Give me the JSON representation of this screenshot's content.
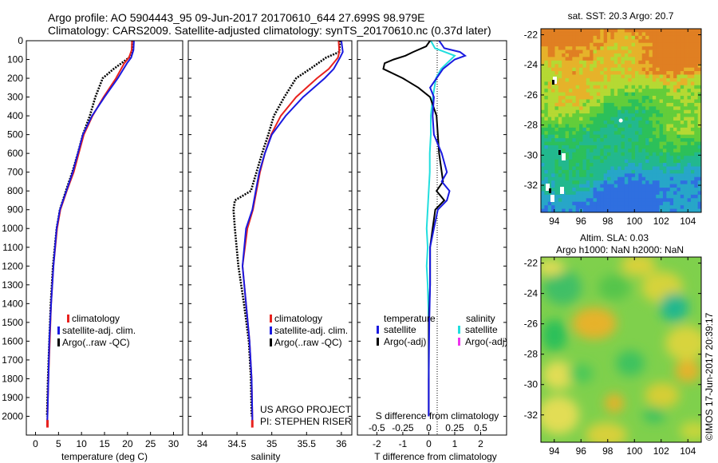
{
  "header": {
    "line1": "Argo profile: AO 5904443_95 09-Jun-2017 20170610_644 27.699S 98.979E",
    "line2": "Climatology: CARS2009. Satellite-adjusted climatology: synTS_20170610.nc (0.37d later)"
  },
  "colors": {
    "climatology": "#e8221e",
    "satellite": "#1a1ae0",
    "argo": "#000000",
    "sal_satellite": "#22dede",
    "sal_argo": "#ee33ee"
  },
  "chart_data": [
    {
      "id": "temperature",
      "type": "line",
      "xlabel": "temperature (deg C)",
      "ylabel": "",
      "xlim": [
        -2,
        32
      ],
      "ylim": [
        2100,
        0
      ],
      "xticks": [
        0,
        5,
        10,
        15,
        20,
        25,
        30
      ],
      "yticks": [
        0,
        100,
        200,
        300,
        400,
        500,
        600,
        700,
        800,
        900,
        1000,
        1100,
        1200,
        1300,
        1400,
        1500,
        1600,
        1700,
        1800,
        1900,
        2000
      ],
      "legend": [
        "climatology",
        "satellite-adj. clim.",
        "Argo(..raw -QC)"
      ],
      "series": [
        {
          "name": "climatology",
          "depth": [
            0,
            50,
            90,
            120,
            200,
            300,
            400,
            500,
            600,
            700,
            800,
            900,
            1000,
            1200,
            1400,
            1600,
            1800,
            2000,
            2050
          ],
          "values": [
            21.0,
            20.9,
            20.3,
            19.3,
            17.5,
            14.8,
            12.4,
            10.5,
            9.4,
            8.3,
            6.8,
            5.4,
            4.7,
            3.9,
            3.4,
            3.1,
            2.8,
            2.6,
            2.5
          ]
        },
        {
          "name": "satellite-adj. clim.",
          "depth": [
            0,
            50,
            90,
            120,
            200,
            300,
            400,
            500,
            600,
            700,
            800,
            900,
            1000,
            1200,
            1400,
            1600,
            1800,
            2000,
            2050
          ],
          "values": [
            21.4,
            21.3,
            20.8,
            19.9,
            17.9,
            15.0,
            12.3,
            10.3,
            9.2,
            8.1,
            6.7,
            5.3,
            4.6,
            3.9,
            3.4,
            3.0,
            2.8,
            2.6,
            2.5
          ]
        },
        {
          "name": "Argo(..raw -QC)",
          "depth": [
            0,
            50,
            80,
            100,
            150,
            200,
            250,
            300,
            400,
            500,
            600,
            700,
            800,
            900,
            1000,
            1200,
            1400,
            1600,
            1800,
            2000
          ],
          "values": [
            21.0,
            21.0,
            20.8,
            19.8,
            17.0,
            14.6,
            13.8,
            13.0,
            11.8,
            10.3,
            9.2,
            8.0,
            6.6,
            5.3,
            4.6,
            3.8,
            3.3,
            3.0,
            2.7,
            2.5
          ]
        }
      ]
    },
    {
      "id": "salinity",
      "type": "line",
      "xlabel": "salinity",
      "ylabel": "",
      "xlim": [
        33.8,
        36.15
      ],
      "ylim": [
        2100,
        0
      ],
      "xticks": [
        34,
        34.5,
        35,
        35.5,
        36
      ],
      "legend": [
        "climatology",
        "satellite-adj. clim.",
        "Argo(..raw -QC)"
      ],
      "annotation": [
        "US ARGO PROJECT",
        "PI: STEPHEN RISER"
      ],
      "series": [
        {
          "name": "climatology",
          "depth": [
            0,
            60,
            90,
            150,
            200,
            300,
            400,
            500,
            600,
            700,
            800,
            900,
            1000,
            1200,
            1400,
            1600,
            1800,
            2000,
            2050
          ],
          "values": [
            35.96,
            35.97,
            35.95,
            35.82,
            35.65,
            35.35,
            35.13,
            34.99,
            34.9,
            34.83,
            34.78,
            34.73,
            34.65,
            34.58,
            34.63,
            34.68,
            34.71,
            34.72,
            34.72
          ]
        },
        {
          "name": "satellite-adj. clim.",
          "depth": [
            0,
            60,
            90,
            150,
            200,
            300,
            400,
            500,
            600,
            700,
            800,
            900,
            1000,
            1200,
            1400,
            1600,
            1800,
            2000,
            2050
          ],
          "values": [
            36.0,
            36.02,
            35.98,
            35.89,
            35.76,
            35.45,
            35.2,
            35.0,
            34.9,
            34.82,
            34.77,
            34.72,
            34.63,
            34.58,
            34.63,
            34.68,
            34.71,
            34.72,
            34.72
          ]
        },
        {
          "name": "Argo(..raw -QC)",
          "depth": [
            0,
            60,
            90,
            150,
            200,
            300,
            400,
            500,
            600,
            700,
            800,
            850,
            900,
            1000,
            1200,
            1400,
            1600,
            1800,
            2000
          ],
          "values": [
            35.98,
            35.97,
            35.78,
            35.55,
            35.35,
            35.18,
            35.03,
            34.95,
            34.86,
            34.78,
            34.7,
            34.47,
            34.45,
            34.47,
            34.52,
            34.6,
            34.67,
            34.7,
            34.71
          ]
        }
      ]
    },
    {
      "id": "difference",
      "type": "line",
      "xlabel": "T difference from climatology",
      "top_label": "S difference from climatology",
      "xlim": [
        -2.75,
        3.0
      ],
      "ylim": [
        2100,
        0
      ],
      "xticks": [
        -2,
        -1,
        0,
        1,
        2
      ],
      "sticks": [
        -0.5,
        -0.25,
        0,
        0.25,
        0.5
      ],
      "stick_labels": [
        "-0.5",
        "-0.25",
        "0",
        "0.25",
        "0.5"
      ],
      "legend": {
        "temperature_title": "temperature",
        "salinity_title": "salinity",
        "t_satellite": "satellite",
        "t_argo": "Argo(-adj)",
        "s_satellite": "satellite",
        "s_argo": "Argo(-adj)"
      },
      "series": [
        {
          "name": "temperature satellite",
          "depth": [
            0,
            20,
            40,
            60,
            80,
            100,
            150,
            200,
            250,
            300,
            400,
            500,
            600,
            700,
            750,
            800,
            850,
            900,
            1000,
            1100,
            1200,
            1300,
            1500,
            1800,
            2000
          ],
          "values": [
            0.4,
            0.5,
            0.6,
            1.2,
            1.4,
            1.0,
            0.55,
            0.3,
            0.05,
            0.2,
            0.15,
            0.2,
            0.5,
            0.7,
            0.5,
            0.8,
            0.7,
            0.35,
            0.2,
            0.05,
            0.05,
            0.05,
            0.02,
            0.0,
            0.0
          ]
        },
        {
          "name": "temperature Argo(-adj)",
          "depth": [
            0,
            30,
            60,
            80,
            100,
            120,
            150,
            200,
            250,
            300,
            400,
            500,
            600,
            700,
            750,
            800,
            850,
            900,
            1000,
            1100,
            1200,
            1300,
            1500,
            1800,
            2000
          ],
          "values": [
            0.05,
            -0.1,
            -0.6,
            -0.9,
            -1.35,
            -1.7,
            -1.75,
            -1.0,
            -0.4,
            0.05,
            0.3,
            0.35,
            0.4,
            0.5,
            0.55,
            0.3,
            0.6,
            0.25,
            0.15,
            0.05,
            0.05,
            0.05,
            0.0,
            0.0,
            0.0
          ]
        },
        {
          "name": "salinity satellite",
          "depth": [
            0,
            40,
            80,
            150,
            200,
            300,
            400,
            500,
            600,
            700,
            800,
            900,
            1000,
            1100,
            1200,
            1300,
            1500,
            1800,
            2000
          ],
          "values": [
            0.02,
            0.06,
            0.25,
            0.12,
            0.07,
            0.04,
            0.02,
            0.02,
            0.01,
            0.01,
            0.0,
            -0.01,
            -0.02,
            -0.01,
            -0.02,
            -0.01,
            0.0,
            0.0,
            0.0
          ]
        },
        {
          "name": "salinity Argo(-adj)",
          "depth": [
            1800,
            1900,
            2000
          ],
          "values": [
            0.0,
            0.0,
            0.0
          ]
        }
      ]
    },
    {
      "id": "sst_map",
      "type": "heatmap",
      "title": "sat. SST: 20.3  Argo: 20.7",
      "xlim": [
        93,
        105
      ],
      "ylim": [
        -33.8,
        -21.6
      ],
      "xticks": [
        94,
        96,
        98,
        100,
        102,
        104
      ],
      "yticks": [
        -22,
        -24,
        -26,
        -28,
        -30,
        -32
      ],
      "argo_position": [
        98.979,
        -27.699
      ]
    },
    {
      "id": "sla_map",
      "type": "heatmap",
      "title_lines": [
        "Altim. SLA: 0.03",
        "Argo h1000: NaN h2000: NaN"
      ],
      "xlim": [
        93,
        105
      ],
      "ylim": [
        -33.8,
        -21.6
      ],
      "xticks": [
        94,
        96,
        98,
        100,
        102,
        104
      ],
      "yticks": [
        -22,
        -24,
        -26,
        -28,
        -30,
        -32
      ]
    }
  ],
  "credit": "©IMOS 17-Jun-2017 20:39:17"
}
